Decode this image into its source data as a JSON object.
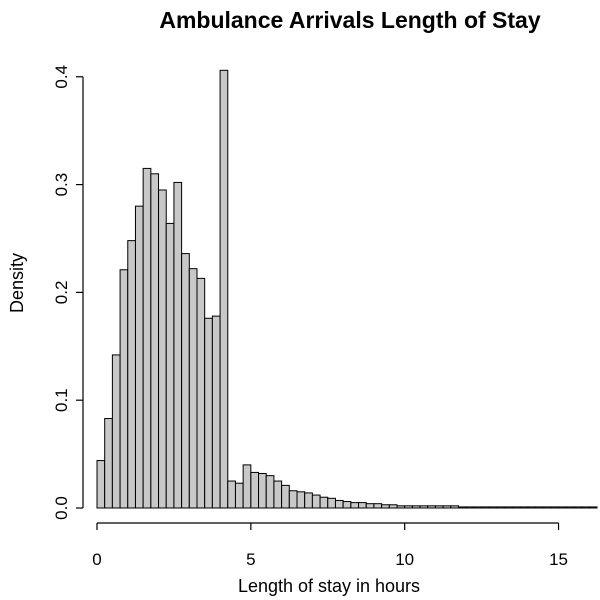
{
  "chart_data": {
    "type": "bar",
    "title": "Ambulance Arrivals Length of Stay",
    "xlabel": "Length of stay in hours",
    "ylabel": "Density",
    "bin_width": 0.25,
    "bin_start": 0,
    "xlim": [
      0,
      16.25
    ],
    "ylim": [
      0,
      0.41
    ],
    "x_ticks": [
      "0",
      "5",
      "10",
      "15"
    ],
    "y_ticks": [
      "0.0",
      "0.1",
      "0.2",
      "0.3",
      "0.4"
    ],
    "values": [
      0.044,
      0.083,
      0.142,
      0.221,
      0.248,
      0.28,
      0.315,
      0.31,
      0.295,
      0.264,
      0.302,
      0.236,
      0.222,
      0.213,
      0.176,
      0.178,
      0.406,
      0.025,
      0.023,
      0.04,
      0.033,
      0.032,
      0.03,
      0.025,
      0.021,
      0.016,
      0.015,
      0.014,
      0.012,
      0.01,
      0.009,
      0.007,
      0.006,
      0.005,
      0.005,
      0.004,
      0.004,
      0.003,
      0.003,
      0.002,
      0.002,
      0.002,
      0.002,
      0.002,
      0.002,
      0.002,
      0.002,
      0.001,
      0.001,
      0.001,
      0.001,
      0.001,
      0.001,
      0.001,
      0.001,
      0.001,
      0.001,
      0.001,
      0.001,
      0.001,
      0.001,
      0.001,
      0.001,
      0.001,
      0.001
    ]
  }
}
